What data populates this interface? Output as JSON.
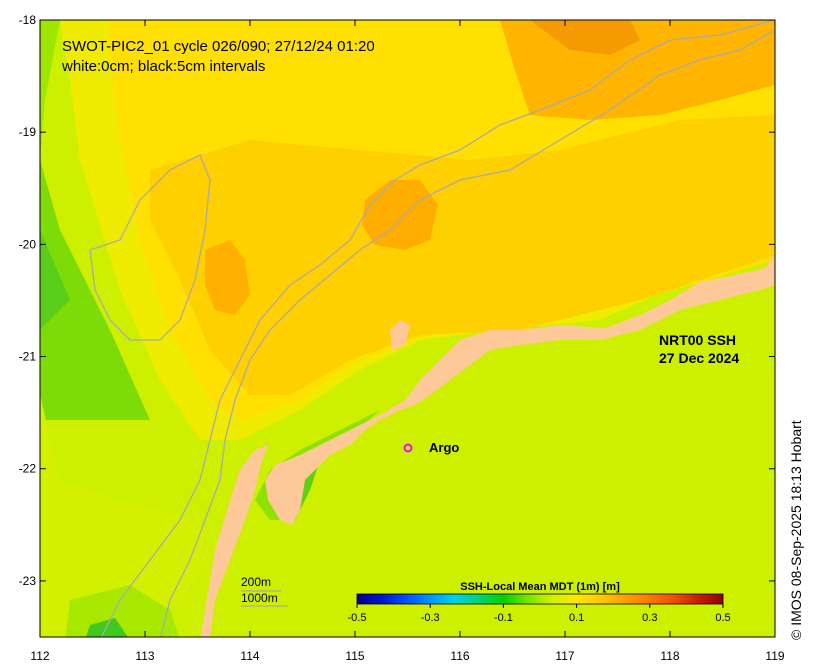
{
  "map": {
    "title_line1": "SWOT-PIC2_01 cycle 026/090; 27/12/24 01:20",
    "title_line2": "white:0cm; black:5cm intervals",
    "product_line1": "NRT00 SSH",
    "product_line2": "27 Dec 2024",
    "argo_label": "Argo",
    "bathy_label_200": "200m",
    "bathy_label_1000": "1000m",
    "credit": "© IMOS 08-Sep-2025 18:13 Hobart",
    "lon_range": [
      112,
      119
    ],
    "lat_range": [
      -23.5,
      -18
    ],
    "lon_ticks": [
      "112",
      "113",
      "114",
      "115",
      "116",
      "117",
      "118",
      "119"
    ],
    "lat_ticks": [
      "-18",
      "-19",
      "-20",
      "-21",
      "-22",
      "-23"
    ],
    "argo_position": {
      "lon": 115.5,
      "lat": -21.8
    },
    "colors": {
      "land": "#fdc998",
      "argo_marker": "#ff00ff",
      "bathy_contour": "#aaaaaa"
    }
  },
  "colorbar": {
    "title": "SSH-Local Mean MDT (1m) [m]",
    "ticks": [
      "-0.5",
      "-0.3",
      "-0.1",
      "0.1",
      "0.3",
      "0.5"
    ],
    "range": [
      -0.5,
      0.5
    ],
    "colormap": [
      "#00008c",
      "#0014c8",
      "#0050ff",
      "#0096ff",
      "#00d2e6",
      "#00d278",
      "#00d200",
      "#78e600",
      "#d2f000",
      "#ffe600",
      "#ffc800",
      "#ffa000",
      "#ff7800",
      "#f05000",
      "#c81e00",
      "#8c0000"
    ]
  }
}
